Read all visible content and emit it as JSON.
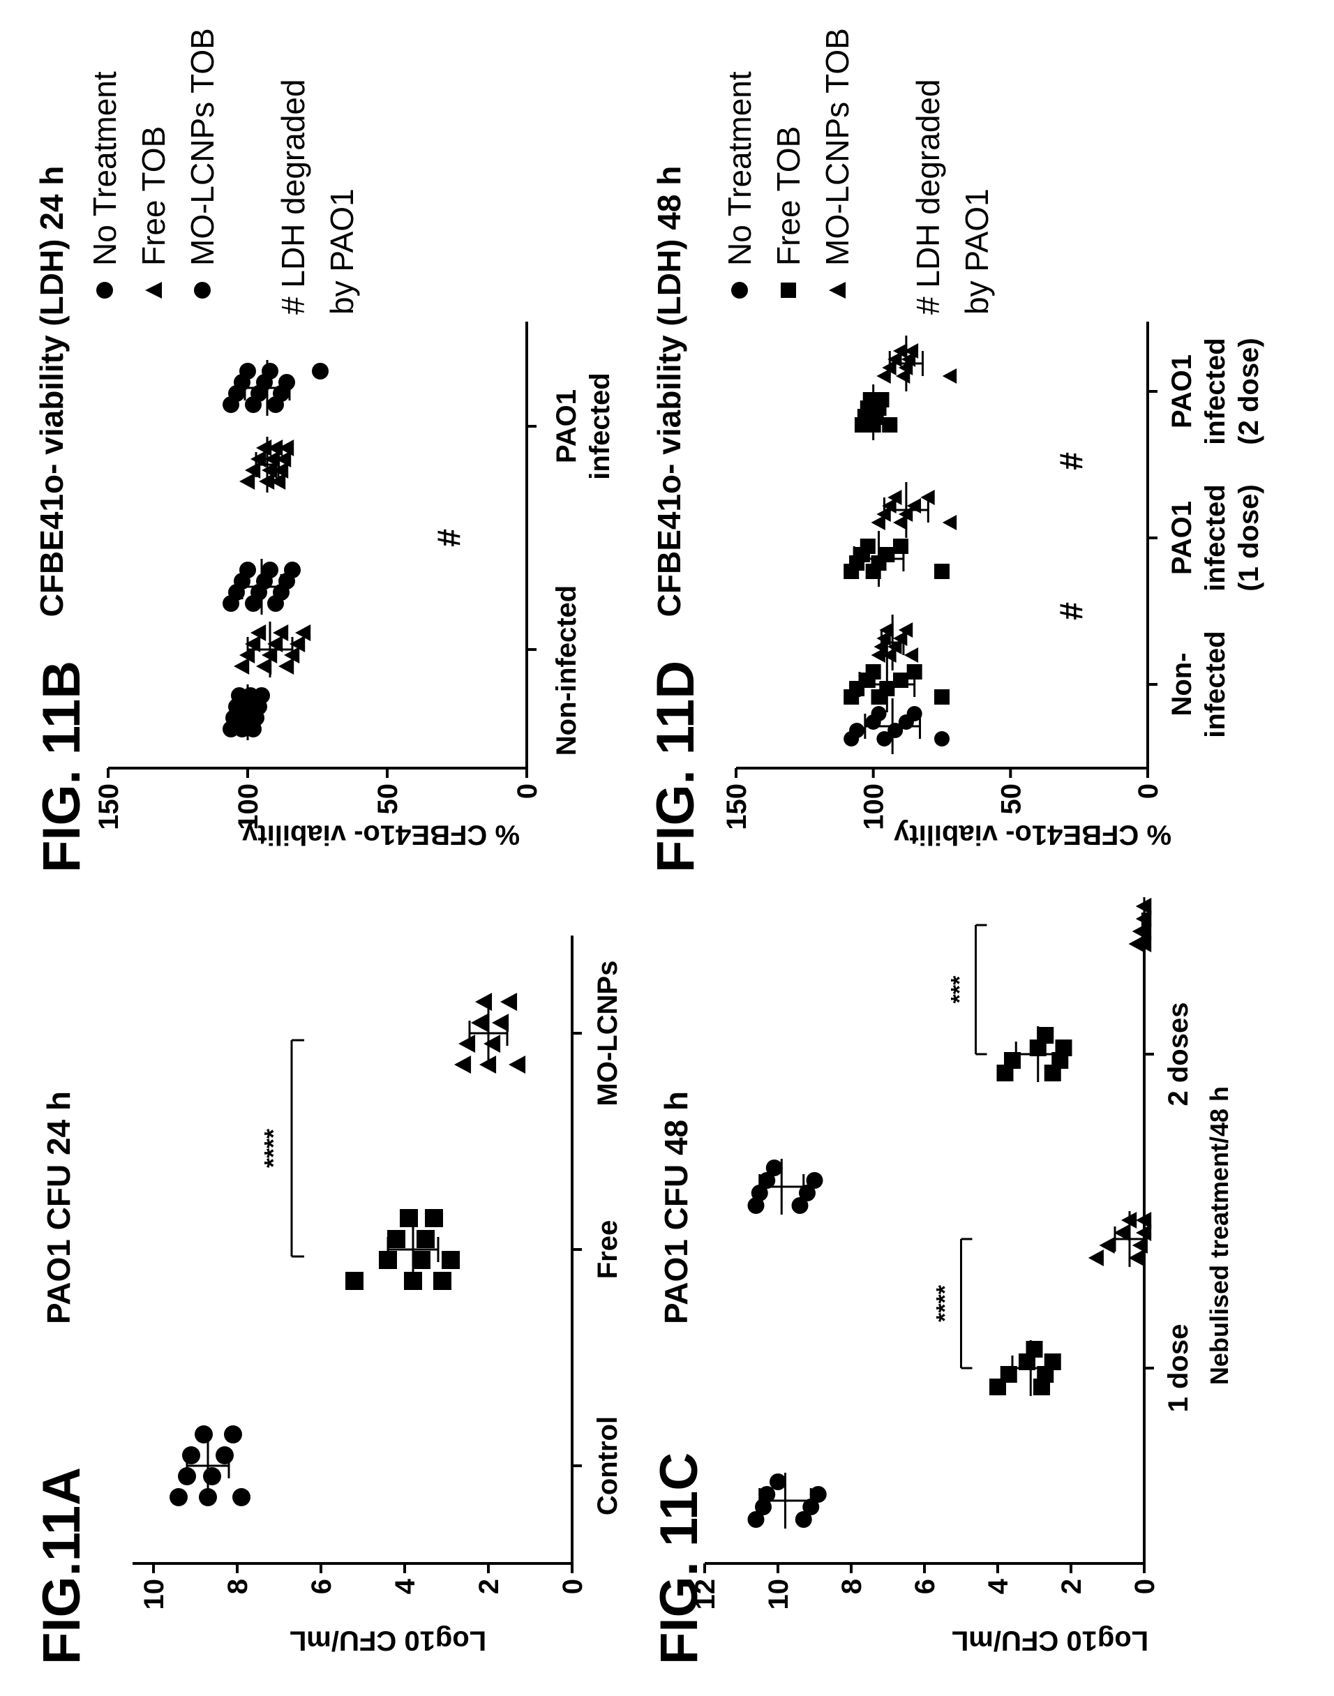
{
  "figures": [
    {
      "fig_label": "FIG.11A",
      "title": "PAO1 CFU 24 h",
      "ylabel": "Log10 CFU/mL",
      "xlabel": "",
      "legend": [],
      "footnote": ""
    },
    {
      "fig_label": "FIG. 11B",
      "title": "CFBE41o- viability (LDH) 24 h",
      "ylabel": "% CFBE41o- viability",
      "xlabel": "",
      "legend": [
        {
          "marker": "circle",
          "label": "No Treatment"
        },
        {
          "marker": "triangle",
          "label": "Free TOB"
        },
        {
          "marker": "circle",
          "label": "MO-LCNPs TOB"
        }
      ],
      "footnote": "# LDH degraded\nby PAO1"
    },
    {
      "fig_label": "FIG. 11C",
      "title": "PAO1 CFU 48 h",
      "ylabel": "Log10 CFU/mL",
      "xlabel": "Nebulised treatment/48 h",
      "legend": [],
      "footnote": ""
    },
    {
      "fig_label": "FIG. 11D",
      "title": "CFBE41o- viability (LDH) 48 h",
      "ylabel": "% CFBE41o- viability",
      "xlabel": "",
      "legend": [
        {
          "marker": "circle",
          "label": "No Treatment"
        },
        {
          "marker": "square",
          "label": "Free TOB"
        },
        {
          "marker": "triangle",
          "label": "MO-LCNPs TOB"
        }
      ],
      "footnote": "# LDH degraded\nby PAO1"
    }
  ],
  "chart_data": [
    {
      "type": "scatter",
      "title": "PAO1 CFU 24 h",
      "ylabel": "Log10 CFU/mL",
      "ylim": [
        0,
        10.5
      ],
      "yticks": [
        0,
        2,
        4,
        6,
        8,
        10
      ],
      "categories": [
        "Control",
        "Free",
        "MO-LCNPs"
      ],
      "series": [
        {
          "category": "Control",
          "marker": "circle",
          "values": [
            9.4,
            9.2,
            9.1,
            8.8,
            8.7,
            8.6,
            8.3,
            8.1,
            7.9
          ],
          "mean": 8.7,
          "sd": 0.5
        },
        {
          "category": "Free",
          "marker": "square",
          "values": [
            5.2,
            4.4,
            4.2,
            3.9,
            3.8,
            3.6,
            3.5,
            3.3,
            3.1,
            2.9
          ],
          "mean": 3.8,
          "sd": 0.6
        },
        {
          "category": "MO-LCNPs",
          "marker": "triangle",
          "values": [
            2.6,
            2.5,
            2.2,
            2.1,
            2.0,
            1.9,
            1.7,
            1.5,
            1.3
          ],
          "mean": 2.0,
          "sd": 0.45
        }
      ],
      "significance": [
        {
          "from": "Control",
          "to": "MO-LCNPs",
          "y": 6.7,
          "label": "****"
        }
      ]
    },
    {
      "type": "scatter",
      "title": "CFBE41o- viability (LDH) 24 h",
      "ylabel": "% CFBE41o- viability",
      "ylim": [
        0,
        150
      ],
      "yticks": [
        0,
        50,
        100,
        150
      ],
      "categories": [
        "Non-infected",
        "PAO1 infected"
      ],
      "series": [
        {
          "category": "Non-infected",
          "marker": "circle",
          "values": [
            106,
            105,
            104,
            103,
            102,
            101,
            100,
            99,
            98,
            97,
            96,
            95
          ],
          "mean": 100,
          "sd": 4
        },
        {
          "category": "Non-infected",
          "marker": "triangle",
          "values": [
            102,
            100,
            98,
            96,
            94,
            92,
            90,
            88,
            86,
            84,
            82,
            80
          ],
          "mean": 92,
          "sd": 8
        },
        {
          "category": "Non-infected",
          "marker": "circle",
          "values": [
            106,
            104,
            102,
            100,
            98,
            96,
            94,
            92,
            90,
            88,
            86,
            84
          ],
          "mean": 95,
          "sd": 7
        },
        {
          "category": "PAO1 infected",
          "marker": "triangle",
          "values": [
            100,
            98,
            96,
            94,
            93,
            92,
            91,
            90,
            89,
            88,
            87,
            86
          ],
          "mean": 93,
          "sd": 4
        },
        {
          "category": "PAO1 infected",
          "marker": "circle",
          "values": [
            106,
            104,
            102,
            100,
            98,
            96,
            94,
            92,
            90,
            88,
            86,
            74
          ],
          "mean": 93,
          "sd": 8
        }
      ],
      "hash_marks": [
        {
          "position": "between-groups",
          "y": 28,
          "label": "#"
        }
      ]
    },
    {
      "type": "scatter",
      "title": "PAO1 CFU 48 h",
      "xlabel": "Nebulised treatment/48 h",
      "ylabel": "Log10 CFU/mL",
      "ylim": [
        0,
        12
      ],
      "yticks": [
        0,
        2,
        4,
        6,
        8,
        10,
        12
      ],
      "categories": [
        "1 dose",
        "2 doses"
      ],
      "series": [
        {
          "category": "1 dose",
          "marker": "circle",
          "values": [
            10.6,
            10.4,
            10.3,
            10.0,
            9.3,
            9.1,
            8.9
          ],
          "mean": 9.8,
          "sd": 0.7
        },
        {
          "category": "1 dose",
          "marker": "square",
          "values": [
            4.0,
            3.7,
            3.2,
            3.0,
            2.8,
            2.7,
            2.5
          ],
          "mean": 3.1,
          "sd": 0.5
        },
        {
          "category": "1 dose",
          "marker": "triangle",
          "values": [
            1.3,
            1.0,
            0.6,
            0.4,
            0.2,
            0.1,
            0.0,
            0.0
          ],
          "mean": 0.4,
          "sd": 0.4
        },
        {
          "category": "2 doses",
          "marker": "circle",
          "values": [
            10.6,
            10.5,
            10.3,
            10.1,
            9.4,
            9.2,
            9.0
          ],
          "mean": 9.9,
          "sd": 0.6
        },
        {
          "category": "2 doses",
          "marker": "square",
          "values": [
            3.8,
            3.6,
            2.9,
            2.7,
            2.5,
            2.3,
            2.2
          ],
          "mean": 2.9,
          "sd": 0.6
        },
        {
          "category": "2 doses",
          "marker": "triangle",
          "values": [
            0.2,
            0.1,
            0.0,
            0.0,
            0.0,
            0.0,
            0.0,
            0.0
          ],
          "mean": 0.0,
          "sd": 0.05
        }
      ],
      "significance": [
        {
          "group": "1 dose",
          "y": 5.0,
          "label": "****"
        },
        {
          "group": "2 doses",
          "y": 4.6,
          "label": "***"
        }
      ]
    },
    {
      "type": "scatter",
      "title": "CFBE41o- viability (LDH) 48 h",
      "ylabel": "% CFBE41o- viability",
      "ylim": [
        0,
        150
      ],
      "yticks": [
        0,
        50,
        100,
        150
      ],
      "categories": [
        "Non-infected",
        "PAO1 infected (1 dose)",
        "PAO1 infected (2 dose)"
      ],
      "series": [
        {
          "category": "Non-infected",
          "marker": "circle",
          "values": [
            108,
            106,
            100,
            98,
            96,
            92,
            88,
            85,
            75
          ],
          "mean": 93,
          "sd": 10
        },
        {
          "category": "Non-infected",
          "marker": "square",
          "values": [
            108,
            106,
            102,
            100,
            98,
            95,
            90,
            85,
            75
          ],
          "mean": 95,
          "sd": 10
        },
        {
          "category": "Non-infected",
          "marker": "triangle",
          "values": [
            98,
            97,
            96,
            95,
            94,
            92,
            90,
            88,
            86
          ],
          "mean": 93,
          "sd": 4
        },
        {
          "category": "PAO1 infected (1 dose)",
          "marker": "square",
          "values": [
            108,
            106,
            104,
            102,
            100,
            98,
            95,
            90,
            75
          ],
          "mean": 98,
          "sd": 9
        },
        {
          "category": "PAO1 infected (1 dose)",
          "marker": "triangle",
          "values": [
            98,
            96,
            94,
            92,
            90,
            88,
            85,
            80,
            72
          ],
          "mean": 88,
          "sd": 8
        },
        {
          "category": "PAO1 infected (2 dose)",
          "marker": "square",
          "values": [
            104,
            103,
            102,
            101,
            100,
            99,
            98,
            97,
            94
          ],
          "mean": 100,
          "sd": 3
        },
        {
          "category": "PAO1 infected (2 dose)",
          "marker": "triangle",
          "values": [
            96,
            94,
            92,
            90,
            89,
            88,
            87,
            86,
            72
          ],
          "mean": 88,
          "sd": 6
        }
      ],
      "hash_marks": [
        {
          "position": "between-1-2",
          "y": 28,
          "label": "#"
        },
        {
          "position": "between-2-3",
          "y": 28,
          "label": "#"
        }
      ]
    }
  ]
}
